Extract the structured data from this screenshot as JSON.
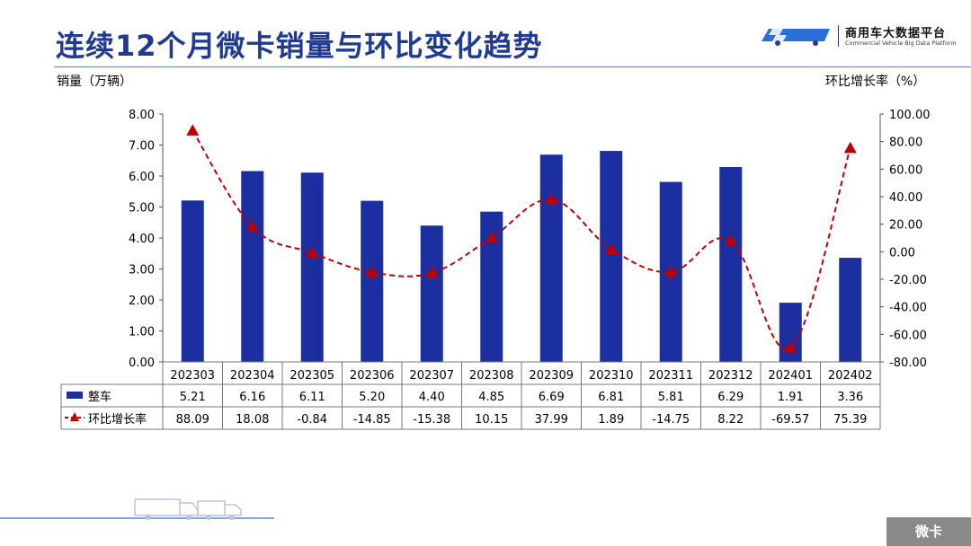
{
  "page": {
    "title": "连续12个月微卡销量与环比变化趋势",
    "logo_name": "商用车大数据平台",
    "logo_sub": "Commercial Vehicle Big Data Platform",
    "footer_tag": "微卡"
  },
  "colors": {
    "bar": "#1b2fa0",
    "line": "#c00000",
    "title": "#1f3a93",
    "footer": "#8a8a8a"
  },
  "chart_data": {
    "type": "bar",
    "categories": [
      "202303",
      "202304",
      "202305",
      "202306",
      "202307",
      "202308",
      "202309",
      "202310",
      "202311",
      "202312",
      "202401",
      "202402"
    ],
    "ylabel_left": "销量（万辆）",
    "ylabel_right": "环比增长率（%）",
    "ylim_left": [
      0,
      8
    ],
    "ylim_right": [
      -80,
      100
    ],
    "yticks_left": [
      "0.00",
      "1.00",
      "2.00",
      "3.00",
      "4.00",
      "5.00",
      "6.00",
      "7.00",
      "8.00"
    ],
    "yticks_right": [
      "-80.00",
      "-60.00",
      "-40.00",
      "-20.00",
      "0.00",
      "20.00",
      "40.00",
      "60.00",
      "80.00",
      "100.00"
    ],
    "series": [
      {
        "name": "整车",
        "type": "bar",
        "axis": "left",
        "values": [
          5.21,
          6.16,
          6.11,
          5.2,
          4.4,
          4.85,
          6.69,
          6.81,
          5.81,
          6.29,
          1.91,
          3.36
        ],
        "labels": [
          "5.21",
          "6.16",
          "6.11",
          "5.20",
          "4.40",
          "4.85",
          "6.69",
          "6.81",
          "5.81",
          "6.29",
          "1.91",
          "3.36"
        ]
      },
      {
        "name": "环比增长率",
        "type": "line",
        "axis": "right",
        "style": "dashed",
        "marker": "triangle",
        "values": [
          88.09,
          18.08,
          -0.84,
          -14.85,
          -15.38,
          10.15,
          37.99,
          1.89,
          -14.75,
          8.22,
          -69.57,
          75.39
        ],
        "labels": [
          "88.09",
          "18.08",
          "-0.84",
          "-14.85",
          "-15.38",
          "10.15",
          "37.99",
          "1.89",
          "-14.75",
          "8.22",
          "-69.57",
          "75.39"
        ]
      }
    ],
    "legend": "data-table"
  }
}
